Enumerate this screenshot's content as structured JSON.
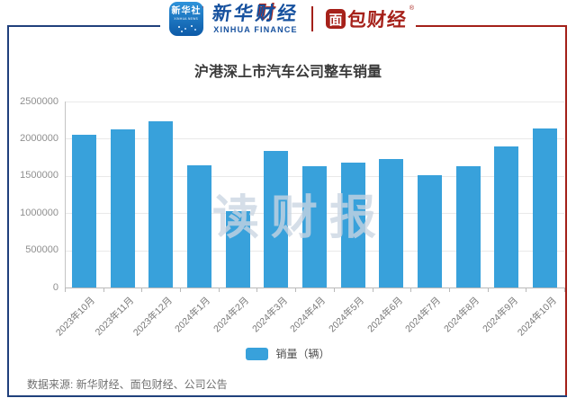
{
  "header": {
    "xinhua_icon": {
      "cn": "新华社",
      "en": "XINHUA NEWS"
    },
    "xinhua_finance": {
      "cn_prefix": "新华",
      "cn_cai": "财",
      "cn_suffix": "经",
      "en": "XINHUA FINANCE"
    },
    "bread_finance": {
      "first_char": "面",
      "rest": "包财经",
      "reg": "®"
    }
  },
  "chart_data": {
    "type": "bar",
    "title": "沪港深上市汽车公司整车销量",
    "categories": [
      "2023年10月",
      "2023年11月",
      "2023年12月",
      "2024年1月",
      "2024年2月",
      "2024年3月",
      "2024年4月",
      "2024年5月",
      "2024年6月",
      "2024年7月",
      "2024年8月",
      "2024年9月",
      "2024年10月"
    ],
    "values": [
      2050000,
      2120000,
      2230000,
      1640000,
      1030000,
      1840000,
      1630000,
      1680000,
      1730000,
      1510000,
      1630000,
      1900000,
      2140000
    ],
    "series_name": "销量（辆）",
    "xlabel": "",
    "ylabel": "",
    "ylim": [
      0,
      2500000
    ],
    "y_ticks": [
      0,
      500000,
      1000000,
      1500000,
      2000000,
      2500000
    ],
    "grid": true,
    "legend_position": "bottom",
    "bar_color": "#38a1db"
  },
  "watermark": "读财报",
  "footer": {
    "source": "数据来源: 新华财经、面包财经、公司公告"
  },
  "colors": {
    "frame_blue": "#20407c",
    "frame_red": "#a32019",
    "brand_blue": "#15509e",
    "brand_red": "#a6211a",
    "bar": "#38a1db"
  }
}
